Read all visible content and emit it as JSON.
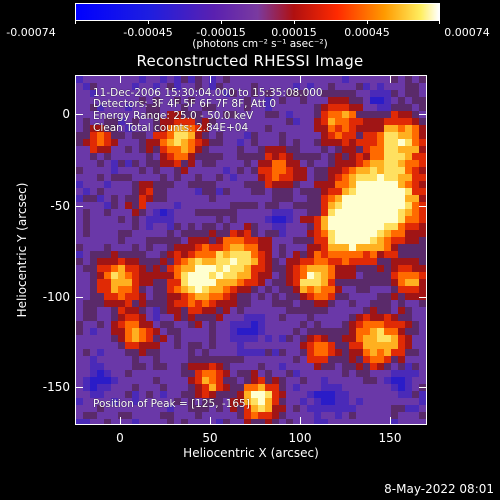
{
  "colorbar": {
    "ticks": [
      "-0.00074",
      "-0.00045",
      "-0.00015",
      "0.00015",
      "0.00045",
      "0.00074"
    ],
    "unit": "(photons cm⁻² s⁻¹ asec⁻²)"
  },
  "title": "Reconstructed RHESSI Image",
  "annotations": {
    "time_range": "11-Dec-2006 15:30:04.000 to 15:35:08.000",
    "detectors": "Detectors: 3F 4F 5F 6F 7F 8F, Att 0",
    "energy_range": "Energy Range: 25.0 - 50.0 keV",
    "clean_counts": "Clean    Total counts: 2.84E+04",
    "peak_position": "Position of Peak = [125, -165]"
  },
  "axes": {
    "xlabel": "Heliocentric X (arcsec)",
    "ylabel": "Heliocentric Y (arcsec)",
    "xticks": [
      "0",
      "50",
      "100",
      "150"
    ],
    "yticks": [
      "0",
      "-50",
      "-100",
      "-150"
    ]
  },
  "footer": {
    "date": "8-May-2022 08:01"
  }
}
